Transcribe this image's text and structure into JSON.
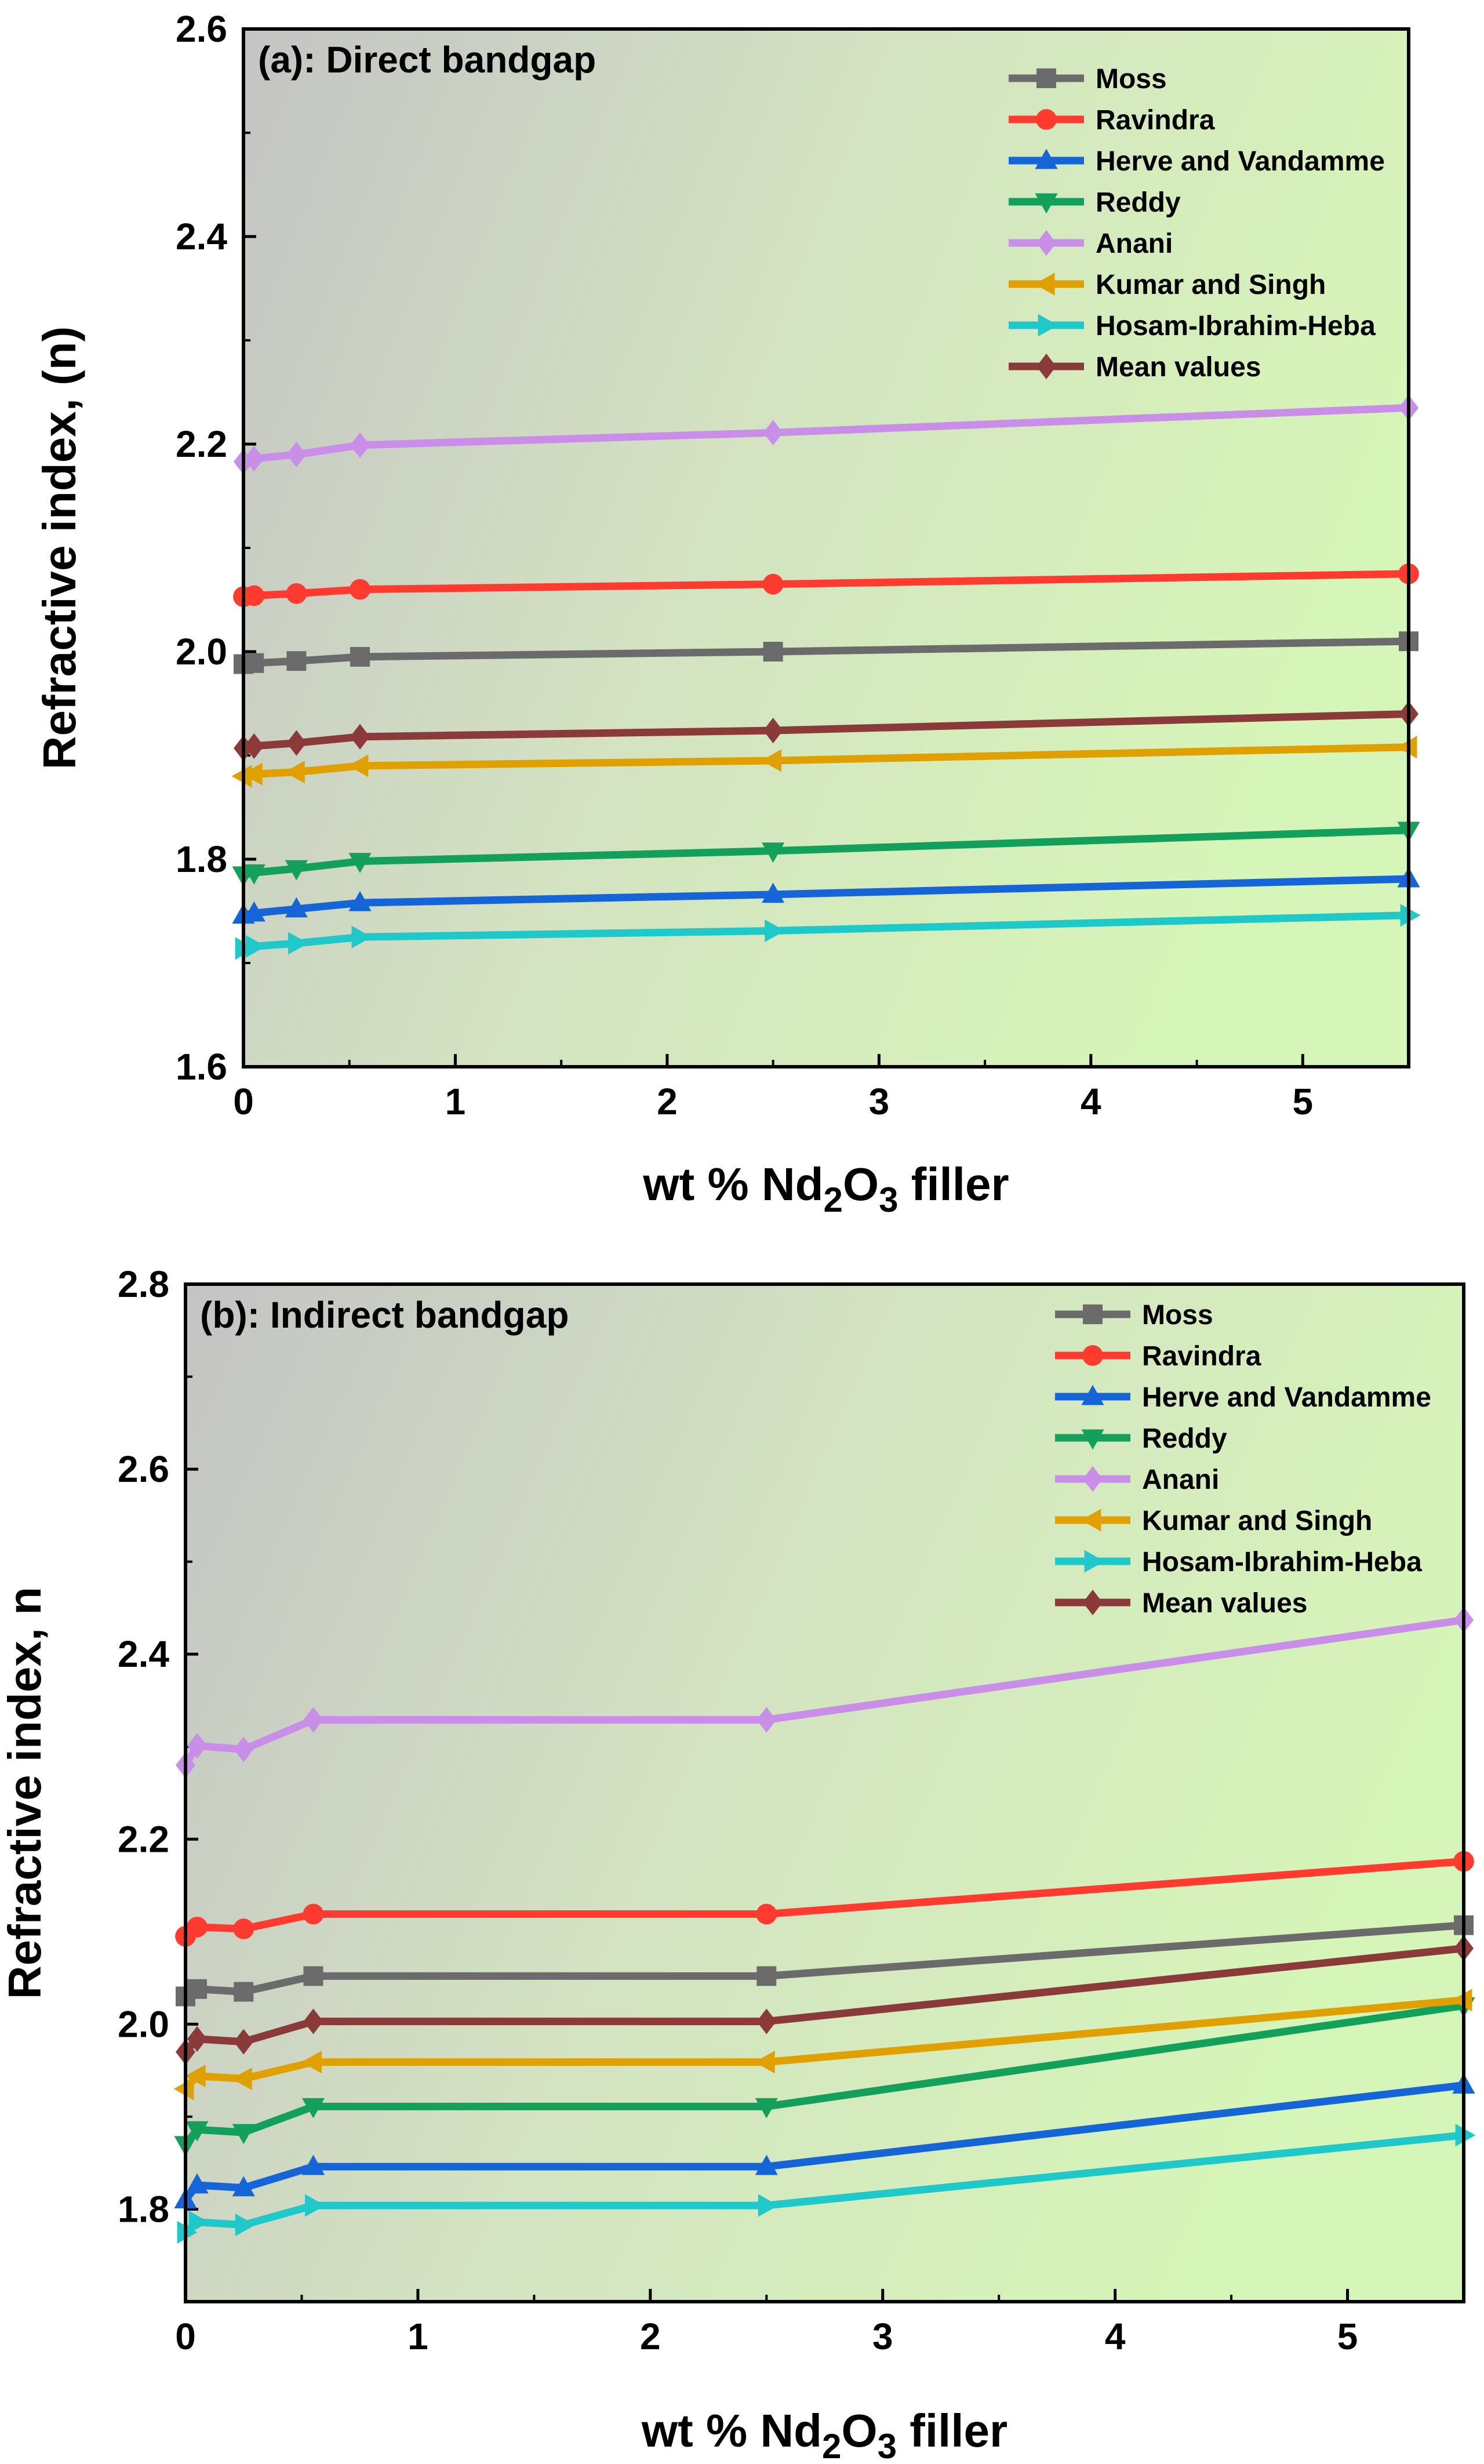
{
  "chart_data": [
    {
      "type": "line",
      "panel_title": "(a): Direct bandgap",
      "xlabel": "wt % Nd2O3 filler",
      "xlabel_parts": [
        "wt % Nd",
        "2",
        "O",
        "3",
        " filler"
      ],
      "ylabel": "Refractive index, (n)",
      "xlim": [
        0,
        5.5
      ],
      "ylim": [
        1.6,
        2.6
      ],
      "xticks": [
        0,
        1,
        2,
        3,
        4,
        5
      ],
      "yticks": [
        1.6,
        1.8,
        2.0,
        2.2,
        2.4,
        2.6
      ],
      "ytick_labels": [
        "1.6",
        "1.8",
        "2.0",
        "2.2",
        "2.4",
        "2.6"
      ],
      "legend_position": "top-right",
      "background": "gradient gray (top-left) to light green",
      "x": [
        0,
        0.05,
        0.25,
        0.55,
        2.5,
        5.5
      ],
      "series": [
        {
          "name": "Moss",
          "color": "#6b6b6b",
          "marker": "square",
          "values": [
            1.988,
            1.989,
            1.991,
            1.995,
            2.0,
            2.01
          ]
        },
        {
          "name": "Ravindra",
          "color": "#ff3b30",
          "marker": "circle",
          "values": [
            2.053,
            2.054,
            2.056,
            2.06,
            2.065,
            2.075
          ]
        },
        {
          "name": "Herve and Vandamme",
          "color": "#1565d8",
          "marker": "triangle-up",
          "values": [
            1.746,
            1.748,
            1.752,
            1.758,
            1.766,
            1.781
          ]
        },
        {
          "name": "Reddy",
          "color": "#12a05a",
          "marker": "triangle-down",
          "values": [
            1.785,
            1.787,
            1.791,
            1.798,
            1.808,
            1.828
          ]
        },
        {
          "name": "Anani",
          "color": "#c98ee8",
          "marker": "diamond",
          "values": [
            2.183,
            2.186,
            2.19,
            2.199,
            2.211,
            2.235
          ]
        },
        {
          "name": "Kumar and Singh",
          "color": "#e0a000",
          "marker": "triangle-left",
          "values": [
            1.88,
            1.882,
            1.884,
            1.89,
            1.895,
            1.908
          ]
        },
        {
          "name": "Hosam-Ibrahim-Heba",
          "color": "#1fc9c9",
          "marker": "triangle-right",
          "values": [
            1.714,
            1.716,
            1.719,
            1.725,
            1.731,
            1.746
          ]
        },
        {
          "name": "Mean values",
          "color": "#8b3a3a",
          "marker": "diamond",
          "values": [
            1.907,
            1.909,
            1.912,
            1.918,
            1.924,
            1.94
          ]
        }
      ]
    },
    {
      "type": "line",
      "panel_title": "(b): Indirect bandgap",
      "xlabel": "wt % Nd2O3 filler",
      "xlabel_parts": [
        "wt % Nd",
        "2",
        "O",
        "3",
        " filler"
      ],
      "ylabel": "Refractive index, n",
      "xlim": [
        0,
        5.5
      ],
      "ylim": [
        1.7,
        2.8
      ],
      "xticks": [
        0,
        1,
        2,
        3,
        4,
        5
      ],
      "yticks": [
        1.8,
        2.0,
        2.2,
        2.4,
        2.6,
        2.8
      ],
      "ytick_labels": [
        "1.8",
        "2.0",
        "2.2",
        "2.4",
        "2.6",
        "2.8"
      ],
      "legend_position": "top-right",
      "background": "gradient gray (top-left) to light green",
      "x": [
        0,
        0.05,
        0.25,
        0.55,
        2.5,
        5.5
      ],
      "series": [
        {
          "name": "Moss",
          "color": "#6b6b6b",
          "marker": "square",
          "values": [
            2.03,
            2.038,
            2.035,
            2.052,
            2.052,
            2.107
          ]
        },
        {
          "name": "Ravindra",
          "color": "#ff3b30",
          "marker": "circle",
          "values": [
            2.095,
            2.105,
            2.103,
            2.119,
            2.119,
            2.176
          ]
        },
        {
          "name": "Herve and Vandamme",
          "color": "#1565d8",
          "marker": "triangle-up",
          "values": [
            1.81,
            1.826,
            1.823,
            1.846,
            1.846,
            1.934
          ]
        },
        {
          "name": "Reddy",
          "color": "#12a05a",
          "marker": "triangle-down",
          "values": [
            1.87,
            1.886,
            1.883,
            1.911,
            1.911,
            2.02
          ]
        },
        {
          "name": "Anani",
          "color": "#c98ee8",
          "marker": "diamond",
          "values": [
            2.28,
            2.301,
            2.297,
            2.329,
            2.329,
            2.437
          ]
        },
        {
          "name": "Kumar and Singh",
          "color": "#e0a000",
          "marker": "triangle-left",
          "values": [
            1.93,
            1.944,
            1.941,
            1.959,
            1.959,
            2.026
          ]
        },
        {
          "name": "Hosam-Ibrahim-Heba",
          "color": "#1fc9c9",
          "marker": "triangle-right",
          "values": [
            1.775,
            1.786,
            1.783,
            1.804,
            1.804,
            1.88
          ]
        },
        {
          "name": "Mean values",
          "color": "#8b3a3a",
          "marker": "diamond",
          "values": [
            1.97,
            1.984,
            1.981,
            2.003,
            2.003,
            2.082
          ]
        }
      ]
    }
  ]
}
